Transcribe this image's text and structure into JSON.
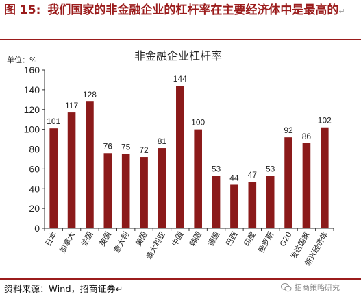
{
  "header": {
    "figure_number": "图 15:",
    "title": "我们国家的非金融企业的杠杆率在主要经济体中是最高的",
    "mark": "↵"
  },
  "chart_data": {
    "type": "bar",
    "title": "非金融企业杠杆率",
    "unit_label": "单位：%",
    "categories": [
      "日本",
      "加拿大",
      "法国",
      "英国",
      "意大利",
      "美国",
      "澳大利亚",
      "中国",
      "韩国",
      "德国",
      "巴西",
      "印度",
      "俄罗斯",
      "G20",
      "发达国家",
      "新兴经济体"
    ],
    "values": [
      101,
      117,
      128,
      76,
      75,
      72,
      81,
      144,
      100,
      53,
      44,
      47,
      53,
      92,
      86,
      102
    ],
    "ylim": [
      0,
      160
    ],
    "yticks": [
      0,
      20,
      40,
      60,
      80,
      100,
      120,
      140,
      160
    ],
    "bar_color": "#8b1a1a",
    "grid": false
  },
  "footer": {
    "source": "资料来源：Wind，招商证券↵",
    "watermark": "招商策略研究"
  },
  "colors": {
    "accent": "#9b1c1c",
    "bar": "#8b1a1a"
  }
}
